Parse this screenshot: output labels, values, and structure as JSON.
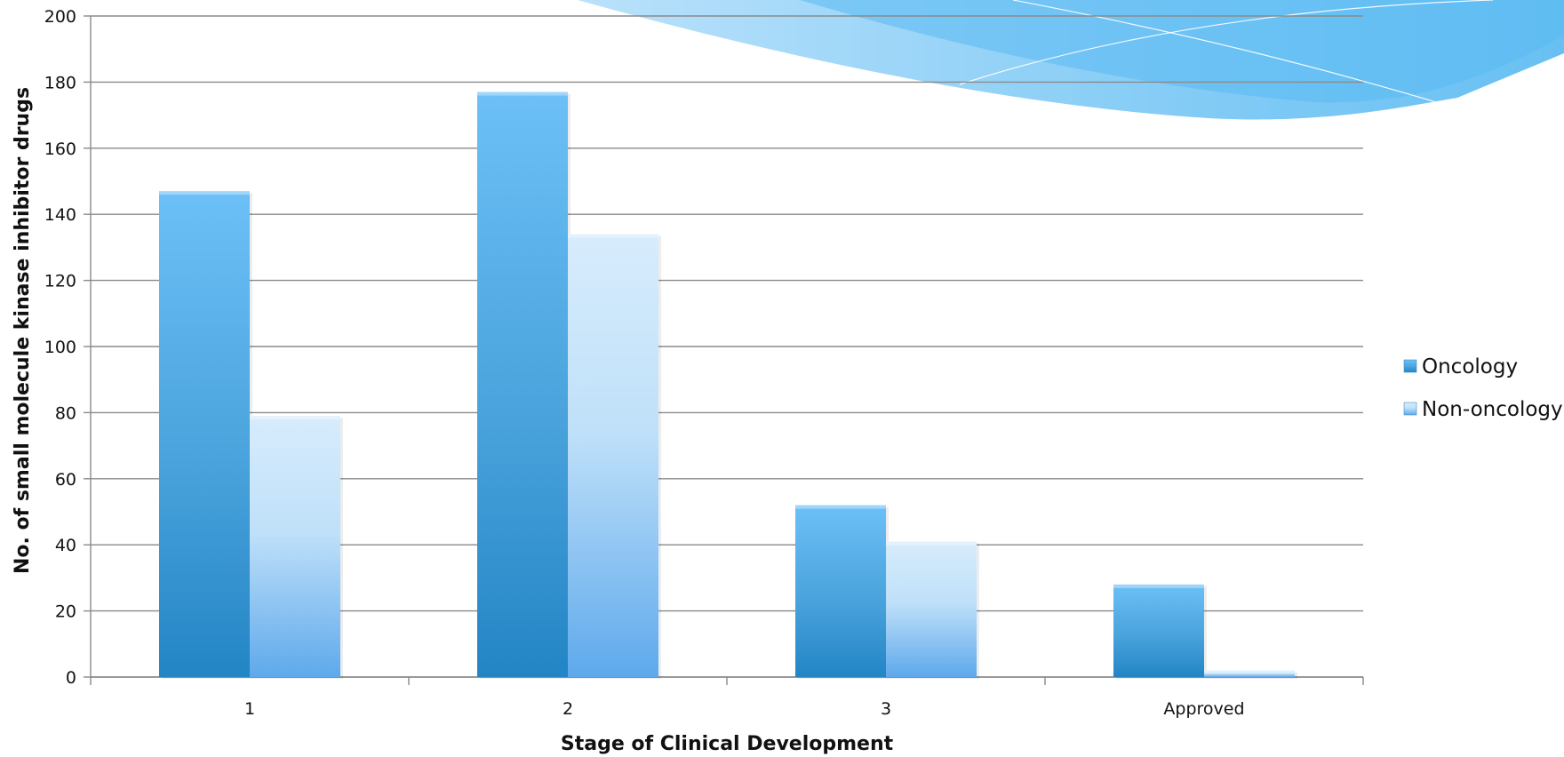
{
  "chart_data": {
    "type": "bar",
    "categories": [
      "1",
      "2",
      "3",
      "Approved"
    ],
    "series": [
      {
        "name": "Oncology",
        "values": [
          147,
          177,
          52,
          28
        ]
      },
      {
        "name": "Non-oncology",
        "values": [
          79,
          134,
          41,
          2
        ]
      }
    ],
    "xlabel": "Stage of Clinical Development",
    "ylabel": "No. of small molecule kinase inhibitor drugs",
    "ylim": [
      0,
      200
    ],
    "yticks": [
      0,
      20,
      40,
      60,
      80,
      100,
      120,
      140,
      160,
      180,
      200
    ],
    "grid": true,
    "legend": "right",
    "colors": {
      "Oncology": "#3f9bd8",
      "Non-oncology": "#8fc6f0"
    }
  }
}
